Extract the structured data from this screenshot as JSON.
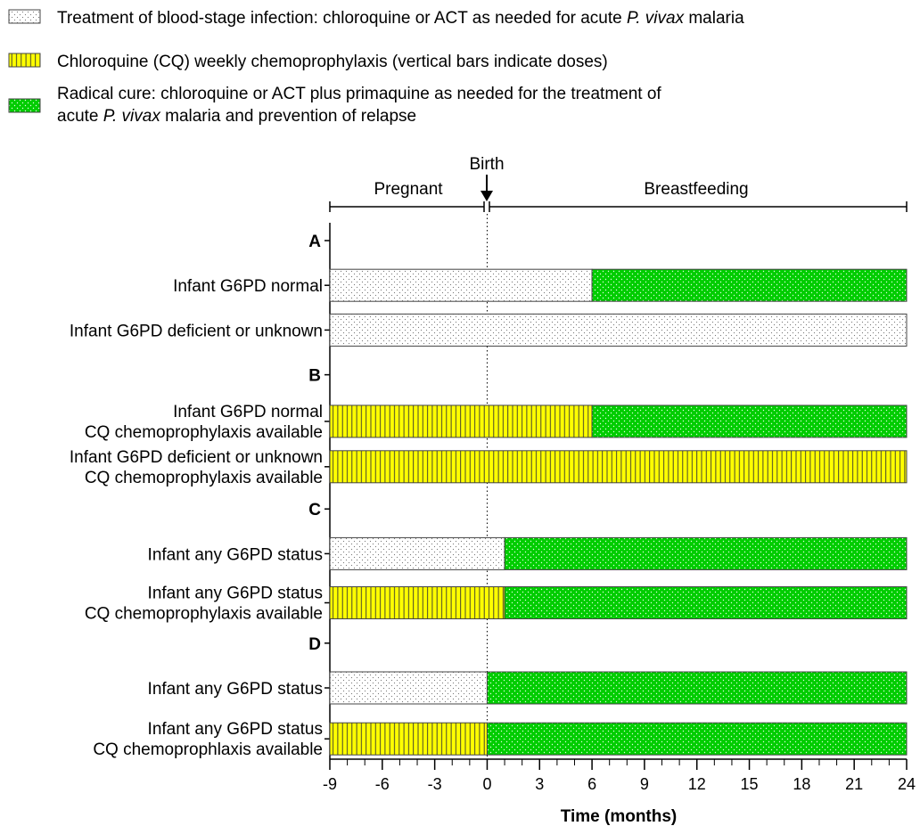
{
  "legend": [
    {
      "key": "blood",
      "text": "Treatment of blood-stage infection: chloroquine or ACT as needed for acute P. vivax malaria"
    },
    {
      "key": "cq",
      "text": "Chloroquine (CQ) weekly chemoprophylaxis (vertical bars indicate doses)"
    },
    {
      "key": "radical",
      "text_line1": "Radical cure: chloroquine or ACT plus primaquine as needed for the treatment of",
      "text_line2": "acute P. vivax malaria and prevention of relapse"
    }
  ],
  "timeline": {
    "birth_label": "Birth",
    "pregnant_label": "Pregnant",
    "breastfeeding_label": "Breastfeeding"
  },
  "colors": {
    "yellow": "#ffff00",
    "green": "#00cc00",
    "white": "#ffffff",
    "outline": "#444444"
  },
  "chart_data": {
    "type": "bar",
    "orientation": "horizontal-stacked",
    "xlabel": "Time (months)",
    "xlim": [
      -9,
      24
    ],
    "xticks": [
      -9,
      -6,
      -3,
      0,
      3,
      6,
      9,
      12,
      15,
      18,
      21,
      24
    ],
    "groups": [
      {
        "label": "A",
        "rows": [
          {
            "line1": "Infant G6PD normal",
            "line2": "",
            "segments": [
              {
                "type": "blood",
                "start": -9,
                "end": 6
              },
              {
                "type": "radical",
                "start": 6,
                "end": 24
              }
            ]
          },
          {
            "line1": "Infant G6PD deficient or unknown",
            "line2": "",
            "segments": [
              {
                "type": "blood",
                "start": -9,
                "end": 24
              }
            ]
          }
        ]
      },
      {
        "label": "B",
        "rows": [
          {
            "line1": "Infant G6PD normal",
            "line2": "CQ chemoprophylaxis available",
            "segments": [
              {
                "type": "cq",
                "start": -9,
                "end": 6
              },
              {
                "type": "radical",
                "start": 6,
                "end": 24
              }
            ]
          },
          {
            "line1": "Infant G6PD deficient or unknown",
            "line2": "CQ chemoprophylaxis available",
            "segments": [
              {
                "type": "cq",
                "start": -9,
                "end": 24
              }
            ]
          }
        ]
      },
      {
        "label": "C",
        "rows": [
          {
            "line1": "Infant any G6PD status",
            "line2": "",
            "segments": [
              {
                "type": "blood",
                "start": -9,
                "end": 1
              },
              {
                "type": "radical",
                "start": 1,
                "end": 24
              }
            ]
          },
          {
            "line1": "Infant any G6PD status",
            "line2": "CQ chemoprophylaxis available",
            "segments": [
              {
                "type": "cq",
                "start": -9,
                "end": 1
              },
              {
                "type": "radical",
                "start": 1,
                "end": 24
              }
            ]
          }
        ]
      },
      {
        "label": "D",
        "rows": [
          {
            "line1": "Infant any G6PD status",
            "line2": "",
            "segments": [
              {
                "type": "blood",
                "start": -9,
                "end": 0
              },
              {
                "type": "radical",
                "start": 0,
                "end": 24
              }
            ]
          },
          {
            "line1": "Infant any G6PD status",
            "line2": "CQ chemoprophlaxis available",
            "segments": [
              {
                "type": "cq",
                "start": -9,
                "end": 0
              },
              {
                "type": "radical",
                "start": 0,
                "end": 24
              }
            ]
          }
        ]
      }
    ]
  }
}
